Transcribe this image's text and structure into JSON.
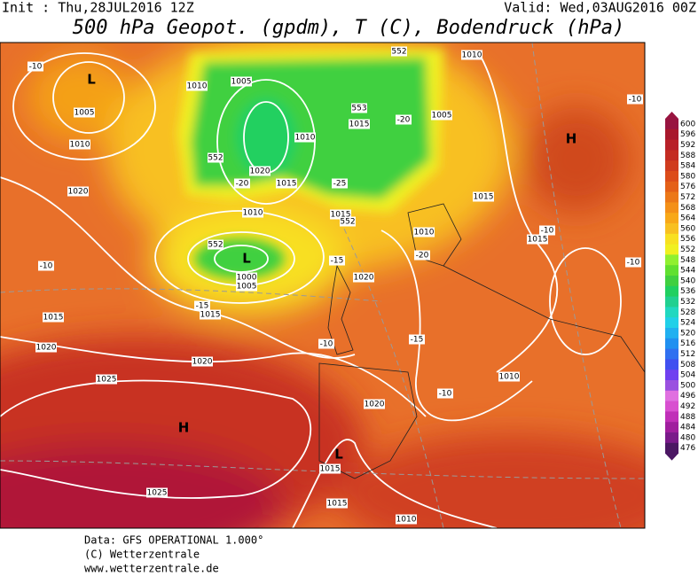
{
  "header": {
    "init": "Init : Thu,28JUL2016 12Z",
    "valid": "Valid: Wed,03AUG2016 00Z",
    "title": "500 hPa Geopot. (gpdm), T (C), Bodendruck (hPa)"
  },
  "legend": {
    "labels": [
      "600",
      "596",
      "592",
      "588",
      "584",
      "580",
      "576",
      "572",
      "568",
      "564",
      "560",
      "556",
      "552",
      "548",
      "544",
      "540",
      "536",
      "532",
      "528",
      "524",
      "520",
      "516",
      "512",
      "508",
      "504",
      "500",
      "496",
      "492",
      "488",
      "484",
      "480",
      "476"
    ],
    "colors": [
      "#981440",
      "#a8182c",
      "#b82028",
      "#c42c22",
      "#d03c1e",
      "#dc4c1a",
      "#e46018",
      "#ec7818",
      "#f49018",
      "#f8a818",
      "#f8c020",
      "#f8e020",
      "#f0f020",
      "#90f030",
      "#60e030",
      "#40d040",
      "#20d060",
      "#20d090",
      "#20d8c0",
      "#20d0e8",
      "#20b0f0",
      "#2090f0",
      "#3070f0",
      "#4050f0",
      "#7040f0",
      "#9a50e0",
      "#e070e0",
      "#d84fd0",
      "#c02fb8",
      "#a01e9e",
      "#7a1a8a",
      "#4b1763"
    ]
  },
  "map_labels": [
    "-10",
    "L",
    "1005",
    "1010",
    "1020",
    "-10",
    "1015",
    "1020",
    "1010",
    "1005",
    "552",
    "1020",
    "1015",
    "-20",
    "1010",
    "552",
    "L",
    "1000",
    "1005",
    "-15",
    "1015",
    "1020",
    "1025",
    "H",
    "1025",
    "L",
    "1015",
    "1015",
    "1020",
    "1010",
    "-10",
    "-15",
    "1020",
    "1015",
    "552",
    "-25",
    "1010",
    "552",
    "1010",
    "553",
    "1015",
    "-20",
    "1005",
    "1010",
    "-20",
    "1015",
    "-15",
    "-10",
    "1010",
    "1015",
    "-10",
    "H",
    "-10",
    "-10"
  ],
  "footer": [
    "Data: GFS OPERATIONAL 1.000°",
    "(C) Wetterzentrale",
    "www.wetterzentrale.de"
  ]
}
